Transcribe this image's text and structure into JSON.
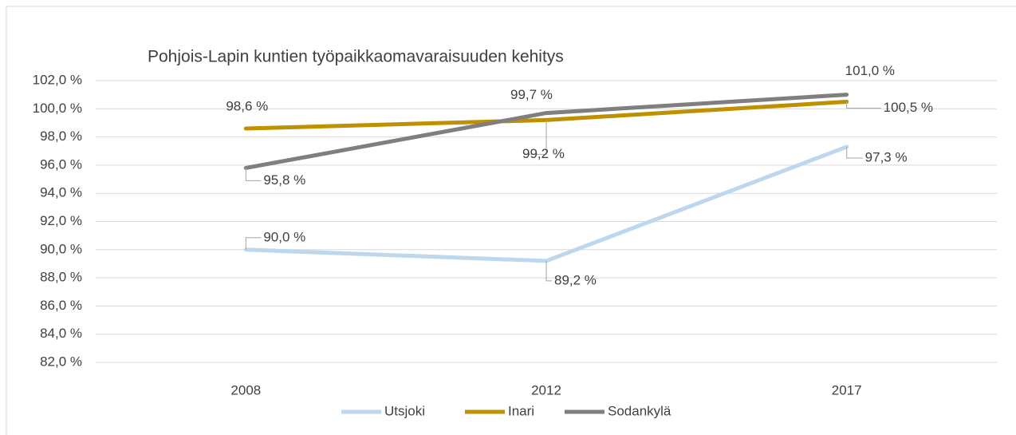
{
  "chart_data": {
    "type": "line",
    "title": "Pohjois-Lapin kuntien työpaikkaomavaraisuuden kehitys",
    "categories": [
      "2008",
      "2012",
      "2017"
    ],
    "series": [
      {
        "name": "Utsjoki",
        "color": "#bdd7ee",
        "values": [
          90.0,
          89.2,
          97.3
        ],
        "value_labels": [
          "90,0 %",
          "89,2 %",
          "97,3 %"
        ]
      },
      {
        "name": "Inari",
        "color": "#bf9000",
        "values": [
          98.6,
          99.2,
          100.5
        ],
        "value_labels": [
          "98,6 %",
          "99,2 %",
          "100,5 %"
        ]
      },
      {
        "name": "Sodankylä",
        "color": "#7f7f7f",
        "values": [
          95.8,
          99.7,
          101.0
        ],
        "value_labels": [
          "95,8 %",
          "99,7 %",
          "101,0 %"
        ]
      }
    ],
    "ylim": [
      82,
      102
    ],
    "yticks": [
      {
        "value": 82,
        "label": "82,0 %"
      },
      {
        "value": 84,
        "label": "84,0 %"
      },
      {
        "value": 86,
        "label": "86,0 %"
      },
      {
        "value": 88,
        "label": "88,0 %"
      },
      {
        "value": 90,
        "label": "90,0 %"
      },
      {
        "value": 92,
        "label": "92,0 %"
      },
      {
        "value": 94,
        "label": "94,0 %"
      },
      {
        "value": 96,
        "label": "96,0 %"
      },
      {
        "value": 98,
        "label": "98,0 %"
      },
      {
        "value": 100,
        "label": "100,0 %"
      },
      {
        "value": 102,
        "label": "102,0 %"
      }
    ],
    "grid": true,
    "legend": "bottom"
  }
}
